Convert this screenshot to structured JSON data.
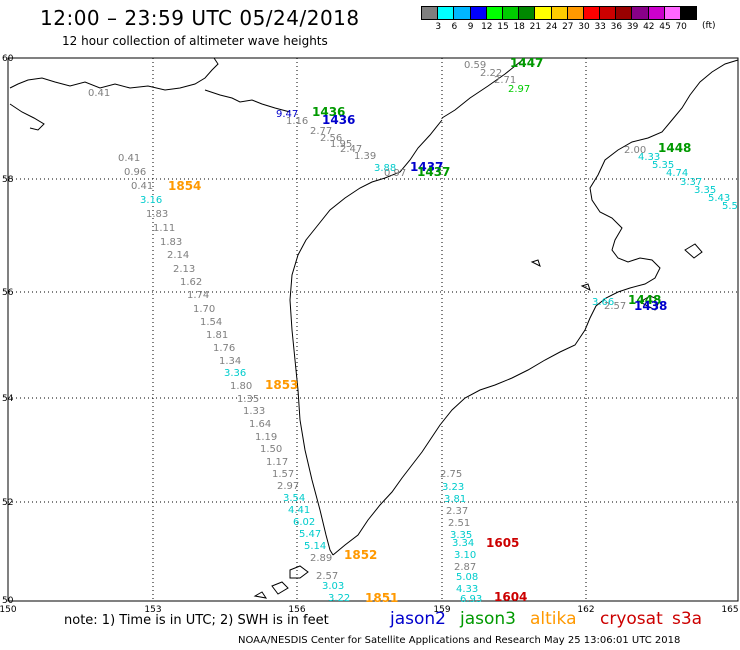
{
  "header": {
    "title": "12:00 – 23:59 UTC 05/24/2018",
    "subtitle": "12 hour collection of altimeter wave heights"
  },
  "scale": {
    "colors": [
      "#7f7f7f",
      "#00ffff",
      "#00b7ff",
      "#0000ff",
      "#00ff00",
      "#00cc00",
      "#008800",
      "#ffff00",
      "#ffcc00",
      "#ff9900",
      "#ff0000",
      "#cc0000",
      "#990000",
      "#880088",
      "#cc00cc",
      "#ff66ff",
      "#000000"
    ],
    "labels": [
      "3",
      "6",
      "9",
      "12",
      "15",
      "18",
      "21",
      "24",
      "27",
      "30",
      "33",
      "36",
      "39",
      "42",
      "45",
      "70"
    ],
    "unit": "(ft)"
  },
  "axes": {
    "lon_ticks": [
      "150",
      "153",
      "156",
      "159",
      "162",
      "165"
    ],
    "lat_ticks": [
      "50",
      "52",
      "54",
      "56",
      "58",
      "60"
    ]
  },
  "legend": {
    "jason2": "jason2",
    "jason3": "jason3",
    "altika": "altika",
    "cryosat": "cryosat",
    "s3a": "s3a",
    "colors": {
      "jason2": "#0000cc",
      "jason3": "#009900",
      "altika": "#ff9900",
      "cryosat": "#cc0000",
      "s3a": "#cc0000"
    }
  },
  "note": "note: 1) Time is in UTC; 2) SWH is in feet",
  "credit": "NOAA/NESDIS Center for Satellite Applications and Research     May 25 13:06:01 UTC 2018",
  "track_labels": [
    {
      "text": "1854",
      "color": "#ff9900"
    },
    {
      "text": "1853",
      "color": "#ff9900"
    },
    {
      "text": "1852",
      "color": "#ff9900"
    },
    {
      "text": "1851",
      "color": "#ff9900"
    },
    {
      "text": "1605",
      "color": "#cc0000"
    },
    {
      "text": "1604",
      "color": "#cc0000"
    },
    {
      "text": "1436",
      "color": "#009900"
    },
    {
      "text": "1436",
      "color": "#0000cc"
    },
    {
      "text": "1437",
      "color": "#0000cc"
    },
    {
      "text": "1437",
      "color": "#009900"
    },
    {
      "text": "1447",
      "color": "#009900"
    },
    {
      "text": "1448",
      "color": "#009900"
    },
    {
      "text": "1448",
      "color": "#009900"
    },
    {
      "text": "1438",
      "color": "#0000cc"
    }
  ],
  "wave_heights": [
    {
      "text": "0.41",
      "c": "#7f7f7f"
    },
    {
      "text": "0.96",
      "c": "#7f7f7f"
    },
    {
      "text": "0.41",
      "c": "#7f7f7f"
    },
    {
      "text": "3.16",
      "c": "#00cccc"
    },
    {
      "text": "1.83",
      "c": "#7f7f7f"
    },
    {
      "text": "1.11",
      "c": "#7f7f7f"
    },
    {
      "text": "1.83",
      "c": "#7f7f7f"
    },
    {
      "text": "2.14",
      "c": "#7f7f7f"
    },
    {
      "text": "2.13",
      "c": "#7f7f7f"
    },
    {
      "text": "1.62",
      "c": "#7f7f7f"
    },
    {
      "text": "1.74",
      "c": "#7f7f7f"
    },
    {
      "text": "1.70",
      "c": "#7f7f7f"
    },
    {
      "text": "1.54",
      "c": "#7f7f7f"
    },
    {
      "text": "1.81",
      "c": "#7f7f7f"
    },
    {
      "text": "1.76",
      "c": "#7f7f7f"
    },
    {
      "text": "1.34",
      "c": "#7f7f7f"
    },
    {
      "text": "3.36",
      "c": "#00cccc"
    },
    {
      "text": "1.80",
      "c": "#7f7f7f"
    },
    {
      "text": "1.35",
      "c": "#7f7f7f"
    },
    {
      "text": "1.33",
      "c": "#7f7f7f"
    },
    {
      "text": "1.64",
      "c": "#7f7f7f"
    },
    {
      "text": "1.19",
      "c": "#7f7f7f"
    },
    {
      "text": "1.50",
      "c": "#7f7f7f"
    },
    {
      "text": "1.17",
      "c": "#7f7f7f"
    },
    {
      "text": "1.57",
      "c": "#7f7f7f"
    },
    {
      "text": "2.97",
      "c": "#7f7f7f"
    },
    {
      "text": "3.54",
      "c": "#00cccc"
    },
    {
      "text": "4.41",
      "c": "#00cccc"
    },
    {
      "text": "6.02",
      "c": "#00cccc"
    },
    {
      "text": "5.47",
      "c": "#00cccc"
    },
    {
      "text": "5.14",
      "c": "#00cccc"
    },
    {
      "text": "2.89",
      "c": "#7f7f7f"
    },
    {
      "text": "2.57",
      "c": "#7f7f7f"
    },
    {
      "text": "3.03",
      "c": "#00cccc"
    },
    {
      "text": "3.22",
      "c": "#00cccc"
    },
    {
      "text": "2.75",
      "c": "#7f7f7f"
    },
    {
      "text": "3.23",
      "c": "#00cccc"
    },
    {
      "text": "3.81",
      "c": "#00cccc"
    },
    {
      "text": "2.37",
      "c": "#7f7f7f"
    },
    {
      "text": "2.51",
      "c": "#7f7f7f"
    },
    {
      "text": "3.35",
      "c": "#00cccc"
    },
    {
      "text": "3.34",
      "c": "#00cccc"
    },
    {
      "text": "3.10",
      "c": "#00cccc"
    },
    {
      "text": "2.87",
      "c": "#7f7f7f"
    },
    {
      "text": "5.08",
      "c": "#00cccc"
    },
    {
      "text": "4.33",
      "c": "#00cccc"
    },
    {
      "text": "6.93",
      "c": "#00cccc"
    },
    {
      "text": "0.41",
      "c": "#7f7f7f"
    },
    {
      "text": "9.47",
      "c": "#0000cc"
    },
    {
      "text": "1.16",
      "c": "#7f7f7f"
    },
    {
      "text": "2.77",
      "c": "#7f7f7f"
    },
    {
      "text": "2.56",
      "c": "#7f7f7f"
    },
    {
      "text": "1.95",
      "c": "#7f7f7f"
    },
    {
      "text": "2.47",
      "c": "#7f7f7f"
    },
    {
      "text": "1.39",
      "c": "#7f7f7f"
    },
    {
      "text": "3.88",
      "c": "#00cccc"
    },
    {
      "text": "0.97",
      "c": "#7f7f7f"
    },
    {
      "text": "0.59",
      "c": "#7f7f7f"
    },
    {
      "text": "2.22",
      "c": "#7f7f7f"
    },
    {
      "text": "2.71",
      "c": "#7f7f7f"
    },
    {
      "text": "2.97",
      "c": "#00cc00"
    },
    {
      "text": "2.00",
      "c": "#7f7f7f"
    },
    {
      "text": "4.33",
      "c": "#00cccc"
    },
    {
      "text": "5.35",
      "c": "#00cccc"
    },
    {
      "text": "4.74",
      "c": "#00cccc"
    },
    {
      "text": "3.37",
      "c": "#00cccc"
    },
    {
      "text": "3.35",
      "c": "#00cccc"
    },
    {
      "text": "5.43",
      "c": "#00cccc"
    },
    {
      "text": "5.5",
      "c": "#00cccc"
    },
    {
      "text": "3.66",
      "c": "#00cccc"
    },
    {
      "text": "2.57",
      "c": "#7f7f7f"
    }
  ]
}
